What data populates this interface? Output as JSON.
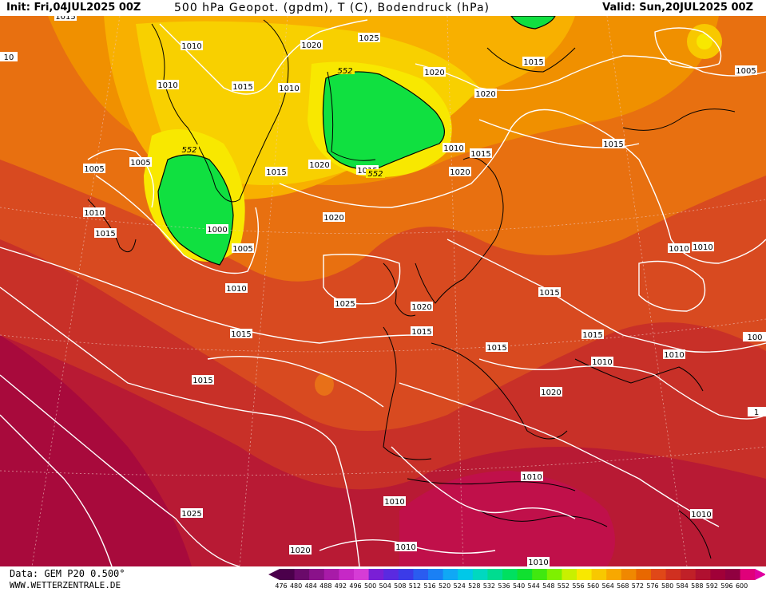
{
  "header": {
    "init": "Init: Fri,04JUL2025 00Z",
    "title": "500 hPa Geopot. (gpdm), T (C), Bodendruck (hPa)",
    "valid": "Valid: Sun,20JUL2025 00Z"
  },
  "footer": {
    "data": "Data: GEM P20 0.500°",
    "site": "WWW.WETTERZENTRALE.DE"
  },
  "legend": {
    "values": [
      "476",
      "480",
      "484",
      "488",
      "492",
      "496",
      "500",
      "504",
      "508",
      "512",
      "516",
      "520",
      "524",
      "528",
      "532",
      "536",
      "540",
      "544",
      "548",
      "552",
      "556",
      "560",
      "564",
      "568",
      "572",
      "576",
      "580",
      "584",
      "588",
      "592",
      "596",
      "600"
    ],
    "colors": [
      "#4b004b",
      "#6a0a6a",
      "#8a128a",
      "#a81ba8",
      "#c628c6",
      "#d63cd6",
      "#7a1fd6",
      "#5a2ae0",
      "#3b3be8",
      "#2a5cf0",
      "#1a80f5",
      "#10a8f5",
      "#00c8e8",
      "#00d8c0",
      "#00dc90",
      "#00e060",
      "#10e030",
      "#40e810",
      "#7ef000",
      "#c8f000",
      "#f8e800",
      "#f8c800",
      "#f8a800",
      "#f08800",
      "#e86800",
      "#e04818",
      "#d03020",
      "#c02028",
      "#b01030",
      "#a00038",
      "#900040",
      "#e0007a"
    ],
    "triangle_left_color": "#4b004b",
    "triangle_right_color": "#e000a0"
  },
  "map": {
    "isobar_labels": [
      {
        "text": "1015",
        "id": "a"
      },
      {
        "text": "1010",
        "id": "b"
      },
      {
        "text": "1025",
        "id": "c"
      },
      {
        "text": "1020",
        "id": "d"
      },
      {
        "text": "1010",
        "id": "e"
      },
      {
        "text": "1015",
        "id": "f"
      },
      {
        "text": "1010",
        "id": "g"
      },
      {
        "text": "1020",
        "id": "h"
      },
      {
        "text": "1015",
        "id": "i"
      },
      {
        "text": "1005",
        "id": "j"
      },
      {
        "text": "1020",
        "id": "k"
      },
      {
        "text": "1005",
        "id": "l"
      },
      {
        "text": "1005",
        "id": "m"
      },
      {
        "text": "1015",
        "id": "n"
      },
      {
        "text": "1020",
        "id": "o"
      },
      {
        "text": "1015",
        "id": "p"
      },
      {
        "text": "1020",
        "id": "q"
      },
      {
        "text": "1010",
        "id": "r"
      },
      {
        "text": "1015",
        "id": "s"
      },
      {
        "text": "1015",
        "id": "t"
      },
      {
        "text": "1015",
        "id": "u"
      },
      {
        "text": "1020",
        "id": "v"
      },
      {
        "text": "1010",
        "id": "w"
      },
      {
        "text": "1010",
        "id": "x"
      },
      {
        "text": "1000",
        "id": "y"
      },
      {
        "text": "1005",
        "id": "z"
      },
      {
        "text": "1025",
        "id": "aa"
      },
      {
        "text": "1020",
        "id": "ab"
      },
      {
        "text": "1010",
        "id": "ac"
      },
      {
        "text": "1010",
        "id": "ad"
      },
      {
        "text": "1010",
        "id": "ae"
      },
      {
        "text": "1015",
        "id": "af"
      },
      {
        "text": "1015",
        "id": "ag"
      },
      {
        "text": "1015",
        "id": "ah"
      },
      {
        "text": "1015",
        "id": "ai"
      },
      {
        "text": "1015",
        "id": "aj"
      },
      {
        "text": "1010",
        "id": "ak"
      },
      {
        "text": "1015",
        "id": "al"
      },
      {
        "text": "1020",
        "id": "am"
      },
      {
        "text": "1010",
        "id": "an"
      },
      {
        "text": "1010",
        "id": "ao"
      },
      {
        "text": "1010",
        "id": "ap"
      },
      {
        "text": "1015",
        "id": "aq"
      },
      {
        "text": "1025",
        "id": "ar"
      },
      {
        "text": "1020",
        "id": "as"
      },
      {
        "text": "1010",
        "id": "at"
      },
      {
        "text": "1010",
        "id": "au"
      },
      {
        "text": "1010",
        "id": "av"
      },
      {
        "text": "10",
        "id": "aw"
      },
      {
        "text": "100",
        "id": "ax"
      },
      {
        "text": "1",
        "id": "ay"
      }
    ],
    "geopot_labels": [
      {
        "text": "552",
        "id": "g1"
      },
      {
        "text": "552",
        "id": "g2"
      },
      {
        "text": "552",
        "id": "g3"
      }
    ]
  }
}
